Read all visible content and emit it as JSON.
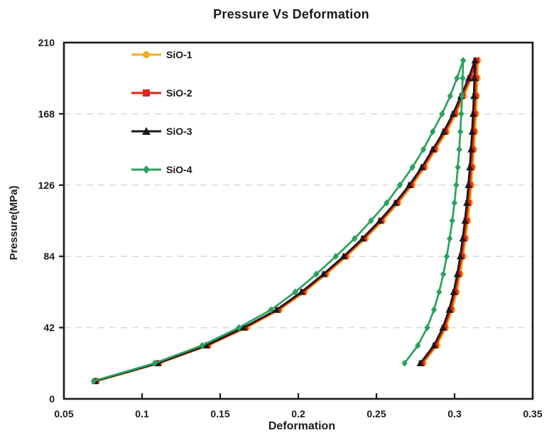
{
  "colors": {
    "background": "#ffffff",
    "plot_border": "#1a1a1a",
    "gridline": "#d9d9d9",
    "text": "#1a1a1a"
  },
  "chart_data": {
    "type": "line",
    "title": "Pressure Vs Deformation",
    "xlabel": "Deformation",
    "ylabel": "Pressure(MPa)",
    "xlim": [
      0.05,
      0.35
    ],
    "ylim": [
      0,
      210
    ],
    "xticks": [
      0.05,
      0.1,
      0.15,
      0.2,
      0.25,
      0.3,
      0.35
    ],
    "yticks": [
      0,
      42,
      84,
      126,
      168,
      210
    ],
    "xtick_marks": [
      0.1,
      0.15,
      0.2,
      0.25,
      0.3
    ],
    "ytick_marks": [
      42,
      84,
      126,
      168
    ],
    "gridlines_y": [
      42,
      84,
      126,
      168
    ],
    "grid_style": "dashed",
    "legend_position": "upper-left-inside",
    "legend": [
      "SiO-1",
      "SiO-2",
      "SiO-3",
      "SiO-4"
    ],
    "description": "Loading-unloading hysteresis curves: pressure increases with deformation along loading branch, then unloads along a nearly vertical branch; points as [deformation, pressure_MPa]",
    "series": [
      {
        "name": "SiO-1",
        "color": "#F2AF1C",
        "marker": "circle",
        "points": [
          [
            0.071,
            10.5
          ],
          [
            0.111,
            21
          ],
          [
            0.1425,
            31.5
          ],
          [
            0.167,
            42
          ],
          [
            0.188,
            52.5
          ],
          [
            0.204,
            63
          ],
          [
            0.218,
            73.5
          ],
          [
            0.231,
            84
          ],
          [
            0.243,
            94.5
          ],
          [
            0.254,
            105
          ],
          [
            0.264,
            115.5
          ],
          [
            0.273,
            126
          ],
          [
            0.281,
            136.5
          ],
          [
            0.288,
            147
          ],
          [
            0.295,
            157.5
          ],
          [
            0.301,
            168
          ],
          [
            0.306,
            178.5
          ],
          [
            0.311,
            189
          ],
          [
            0.315,
            199.5
          ],
          [
            0.3147,
            189
          ],
          [
            0.3143,
            178.5
          ],
          [
            0.3138,
            168
          ],
          [
            0.3132,
            157.5
          ],
          [
            0.3125,
            147
          ],
          [
            0.3117,
            136.5
          ],
          [
            0.3108,
            126
          ],
          [
            0.3098,
            115.5
          ],
          [
            0.3086,
            105
          ],
          [
            0.3072,
            94.5
          ],
          [
            0.3056,
            84
          ],
          [
            0.3037,
            73.5
          ],
          [
            0.3014,
            63
          ],
          [
            0.2985,
            52.5
          ],
          [
            0.2945,
            42
          ],
          [
            0.2888,
            31.5
          ],
          [
            0.28,
            21
          ]
        ]
      },
      {
        "name": "SiO-2",
        "color": "#E2241A",
        "marker": "square",
        "points": [
          [
            0.0705,
            10.5
          ],
          [
            0.1105,
            21
          ],
          [
            0.1418,
            31.5
          ],
          [
            0.166,
            42
          ],
          [
            0.187,
            52.5
          ],
          [
            0.203,
            63
          ],
          [
            0.217,
            73.5
          ],
          [
            0.23,
            84
          ],
          [
            0.242,
            94.5
          ],
          [
            0.253,
            105
          ],
          [
            0.263,
            115.5
          ],
          [
            0.272,
            126
          ],
          [
            0.28,
            136.5
          ],
          [
            0.287,
            147
          ],
          [
            0.294,
            157.5
          ],
          [
            0.3,
            168
          ],
          [
            0.305,
            178.5
          ],
          [
            0.31,
            189
          ],
          [
            0.314,
            199.5
          ],
          [
            0.3137,
            189
          ],
          [
            0.3133,
            178.5
          ],
          [
            0.3128,
            168
          ],
          [
            0.3122,
            157.5
          ],
          [
            0.3115,
            147
          ],
          [
            0.3107,
            136.5
          ],
          [
            0.3098,
            126
          ],
          [
            0.3088,
            115.5
          ],
          [
            0.3076,
            105
          ],
          [
            0.3062,
            94.5
          ],
          [
            0.3046,
            84
          ],
          [
            0.3027,
            73.5
          ],
          [
            0.3004,
            63
          ],
          [
            0.2975,
            52.5
          ],
          [
            0.2935,
            42
          ],
          [
            0.2878,
            31.5
          ],
          [
            0.279,
            21
          ]
        ]
      },
      {
        "name": "SiO-3",
        "color": "#1A1A1A",
        "marker": "triangle",
        "points": [
          [
            0.07,
            10.5
          ],
          [
            0.11,
            21
          ],
          [
            0.141,
            31.5
          ],
          [
            0.165,
            42
          ],
          [
            0.186,
            52.5
          ],
          [
            0.202,
            63
          ],
          [
            0.216,
            73.5
          ],
          [
            0.229,
            84
          ],
          [
            0.241,
            94.5
          ],
          [
            0.252,
            105
          ],
          [
            0.262,
            115.5
          ],
          [
            0.271,
            126
          ],
          [
            0.279,
            136.5
          ],
          [
            0.286,
            147
          ],
          [
            0.293,
            157.5
          ],
          [
            0.299,
            168
          ],
          [
            0.304,
            178.5
          ],
          [
            0.309,
            189
          ],
          [
            0.313,
            199.5
          ],
          [
            0.3127,
            189
          ],
          [
            0.3123,
            178.5
          ],
          [
            0.3118,
            168
          ],
          [
            0.3112,
            157.5
          ],
          [
            0.3105,
            147
          ],
          [
            0.3097,
            136.5
          ],
          [
            0.3088,
            126
          ],
          [
            0.3078,
            115.5
          ],
          [
            0.3066,
            105
          ],
          [
            0.3052,
            94.5
          ],
          [
            0.3036,
            84
          ],
          [
            0.3017,
            73.5
          ],
          [
            0.2994,
            63
          ],
          [
            0.2965,
            52.5
          ],
          [
            0.2925,
            42
          ],
          [
            0.2868,
            31.5
          ],
          [
            0.278,
            21
          ]
        ]
      },
      {
        "name": "SiO-4",
        "color": "#2BA05F",
        "marker": "diamond",
        "points": [
          [
            0.069,
            10.5
          ],
          [
            0.108,
            21
          ],
          [
            0.1385,
            31.5
          ],
          [
            0.162,
            42
          ],
          [
            0.1825,
            52.5
          ],
          [
            0.198,
            63
          ],
          [
            0.2115,
            73.5
          ],
          [
            0.224,
            84
          ],
          [
            0.236,
            94.5
          ],
          [
            0.2465,
            105
          ],
          [
            0.2565,
            115.5
          ],
          [
            0.265,
            126
          ],
          [
            0.273,
            136.5
          ],
          [
            0.28,
            147
          ],
          [
            0.286,
            157.5
          ],
          [
            0.292,
            168
          ],
          [
            0.2972,
            178.5
          ],
          [
            0.3015,
            189
          ],
          [
            0.3055,
            199.5
          ],
          [
            0.3052,
            189
          ],
          [
            0.3048,
            178.5
          ],
          [
            0.3043,
            168
          ],
          [
            0.3037,
            157.5
          ],
          [
            0.303,
            147
          ],
          [
            0.3021,
            136.5
          ],
          [
            0.3011,
            126
          ],
          [
            0.2999,
            115.5
          ],
          [
            0.2985,
            105
          ],
          [
            0.2969,
            94.5
          ],
          [
            0.295,
            84
          ],
          [
            0.2928,
            73.5
          ],
          [
            0.2901,
            63
          ],
          [
            0.2868,
            52.5
          ],
          [
            0.2825,
            42
          ],
          [
            0.2765,
            31.5
          ],
          [
            0.268,
            21
          ]
        ]
      }
    ]
  }
}
